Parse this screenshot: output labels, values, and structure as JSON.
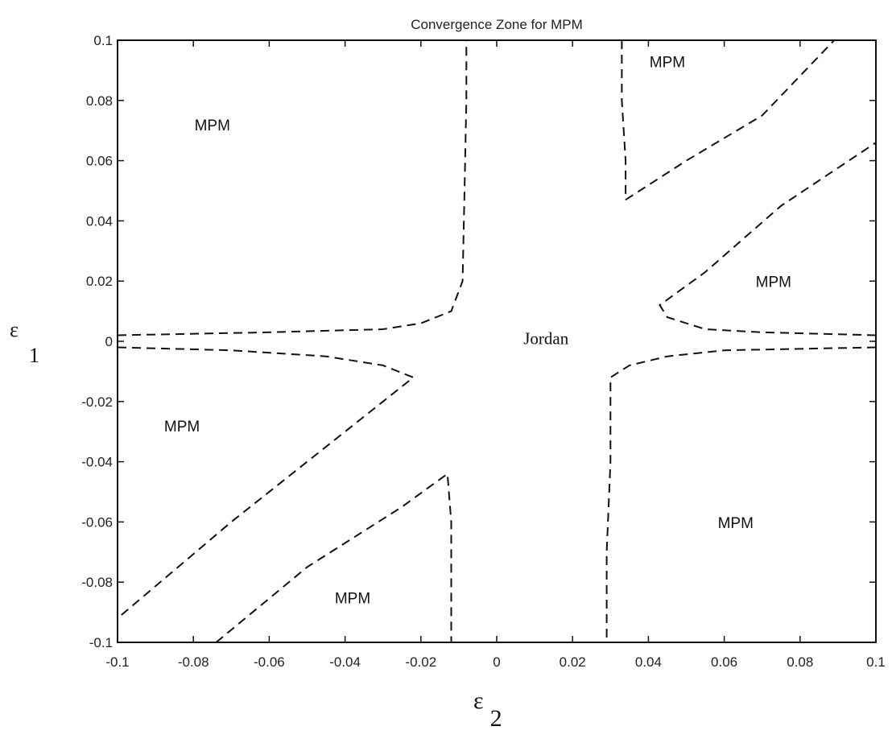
{
  "chart_data": {
    "type": "line",
    "title": "Convergence Zone for MPM",
    "xlabel": {
      "symbol": "ε",
      "subscript": "2"
    },
    "ylabel": {
      "symbol": "ε",
      "subscript": "1"
    },
    "xlim": [
      -0.1,
      0.1
    ],
    "ylim": [
      -0.1,
      0.1
    ],
    "x_ticks": [
      -0.1,
      -0.08,
      -0.06,
      -0.04,
      -0.02,
      0,
      0.02,
      0.04,
      0.06,
      0.08,
      0.1
    ],
    "x_tick_labels": [
      "-0.1",
      "-0.08",
      "-0.06",
      "-0.04",
      "-0.02",
      "0",
      "0.02",
      "0.04",
      "0.06",
      "0.08",
      "0.1"
    ],
    "y_ticks": [
      0.1,
      0.08,
      0.06,
      0.04,
      0.02,
      0,
      -0.02,
      -0.04,
      -0.06,
      -0.08,
      -0.1
    ],
    "y_tick_labels": [
      "0.1",
      "0.08",
      "0.06",
      "0.04",
      "0.02",
      "0",
      "-0.02",
      "-0.04",
      "-0.06",
      "-0.08",
      "-0.1"
    ],
    "grid": false,
    "line_style": "dashed",
    "boundaries": [
      {
        "points": [
          [
            -0.1,
            0.002
          ],
          [
            -0.06,
            0.003
          ],
          [
            -0.03,
            0.004
          ],
          [
            -0.02,
            0.006
          ],
          [
            -0.012,
            0.01
          ],
          [
            -0.009,
            0.02
          ],
          [
            -0.0085,
            0.05
          ],
          [
            -0.008,
            0.08
          ],
          [
            -0.008,
            0.1
          ]
        ]
      },
      {
        "points": [
          [
            -0.1,
            -0.002
          ],
          [
            -0.07,
            -0.003
          ],
          [
            -0.045,
            -0.005
          ],
          [
            -0.03,
            -0.008
          ],
          [
            -0.022,
            -0.012
          ],
          [
            -0.035,
            -0.025
          ],
          [
            -0.07,
            -0.06
          ],
          [
            -0.1,
            -0.092
          ]
        ]
      },
      {
        "points": [
          [
            -0.074,
            -0.1
          ],
          [
            -0.05,
            -0.075
          ],
          [
            -0.025,
            -0.055
          ],
          [
            -0.013,
            -0.044
          ],
          [
            -0.012,
            -0.06
          ],
          [
            -0.012,
            -0.08
          ],
          [
            -0.012,
            -0.1
          ]
        ]
      },
      {
        "points": [
          [
            0.1,
            -0.002
          ],
          [
            0.06,
            -0.003
          ],
          [
            0.045,
            -0.005
          ],
          [
            0.035,
            -0.008
          ],
          [
            0.03,
            -0.012
          ],
          [
            0.03,
            -0.04
          ],
          [
            0.029,
            -0.07
          ],
          [
            0.029,
            -0.1
          ]
        ]
      },
      {
        "points": [
          [
            0.1,
            0.002
          ],
          [
            0.07,
            0.003
          ],
          [
            0.055,
            0.004
          ],
          [
            0.045,
            0.008
          ],
          [
            0.043,
            0.012
          ],
          [
            0.055,
            0.023
          ],
          [
            0.075,
            0.045
          ],
          [
            0.1,
            0.066
          ]
        ]
      },
      {
        "points": [
          [
            0.034,
            0.047
          ],
          [
            0.05,
            0.06
          ],
          [
            0.07,
            0.075
          ],
          [
            0.089,
            0.1
          ]
        ]
      },
      {
        "points": [
          [
            0.033,
            0.1
          ],
          [
            0.033,
            0.08
          ],
          [
            0.034,
            0.06
          ],
          [
            0.034,
            0.047
          ]
        ]
      }
    ],
    "region_labels": [
      {
        "text": "MPM",
        "x": -0.075,
        "y": 0.07
      },
      {
        "text": "MPM",
        "x": 0.045,
        "y": 0.091
      },
      {
        "text": "MPM",
        "x": 0.073,
        "y": 0.018
      },
      {
        "text": "MPM",
        "x": -0.083,
        "y": -0.03
      },
      {
        "text": "MPM",
        "x": 0.063,
        "y": -0.062
      },
      {
        "text": "MPM",
        "x": -0.038,
        "y": -0.087
      },
      {
        "text": "Jordan",
        "x": 0.013,
        "y": -0.001
      }
    ]
  }
}
